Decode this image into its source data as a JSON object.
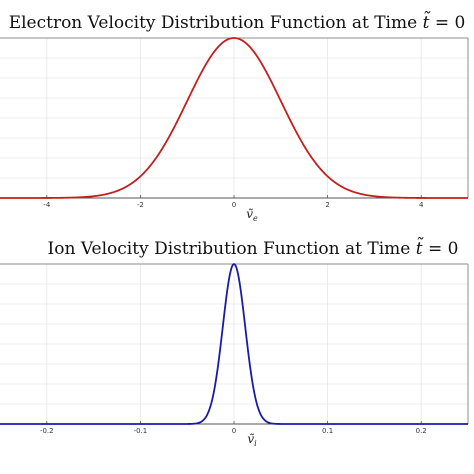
{
  "chart_data": [
    {
      "type": "line",
      "title": "Electron Velocity Distribution Function at Time t̃ = 0",
      "title_main": "Electron Velocity Distribution Function at Time ",
      "title_var": "t̃",
      "title_eq": " = 0",
      "xlabel": "ṽ",
      "xlabel_sub": "e",
      "ylabel": "",
      "xlim": [
        -5,
        5
      ],
      "ylim": [
        0,
        1
      ],
      "x_ticks": [
        "-4",
        "-2",
        "0",
        "2",
        "4"
      ],
      "x_tick_values": [
        -4,
        -2,
        0,
        2,
        4
      ],
      "grid": true,
      "series": [
        {
          "color": "#c41e1e",
          "x": [
            -5,
            -4,
            -3.5,
            -3,
            -2.5,
            -2,
            -1.5,
            -1,
            -0.5,
            0,
            0.5,
            1,
            1.5,
            2,
            2.5,
            3,
            3.5,
            4,
            5
          ],
          "y": [
            0,
            0.0003,
            0.0022,
            0.0111,
            0.0439,
            0.1353,
            0.3247,
            0.6065,
            0.8825,
            1,
            0.8825,
            0.6065,
            0.3247,
            0.1353,
            0.0439,
            0.0111,
            0.0022,
            0.0003,
            0
          ]
        }
      ]
    },
    {
      "type": "line",
      "title": "Ion Velocity Distribution Function at Time t̃ = 0",
      "title_main": "Ion Velocity Distribution Function at Time ",
      "title_var": "t̃",
      "title_eq": " = 0",
      "xlabel": "ṽ",
      "xlabel_sub": "i",
      "ylabel": "",
      "xlim": [
        -0.25,
        0.25
      ],
      "ylim": [
        0,
        1
      ],
      "x_ticks": [
        "-0.2",
        "-0.1",
        "0",
        "0.1",
        "0.2"
      ],
      "x_tick_values": [
        -0.2,
        -0.1,
        0,
        0.1,
        0.2
      ],
      "grid": true,
      "series": [
        {
          "color": "#1a1aa8",
          "x": [
            -0.25,
            -0.04,
            -0.03,
            -0.02,
            -0.015,
            -0.01,
            -0.005,
            0,
            0.005,
            0.01,
            0.015,
            0.02,
            0.03,
            0.04,
            0.25
          ],
          "y": [
            0,
            0.0002,
            0.0067,
            0.1084,
            0.2865,
            0.5701,
            0.8688,
            1,
            0.8688,
            0.5701,
            0.2865,
            0.1084,
            0.0067,
            0.0002,
            0
          ]
        }
      ]
    }
  ]
}
